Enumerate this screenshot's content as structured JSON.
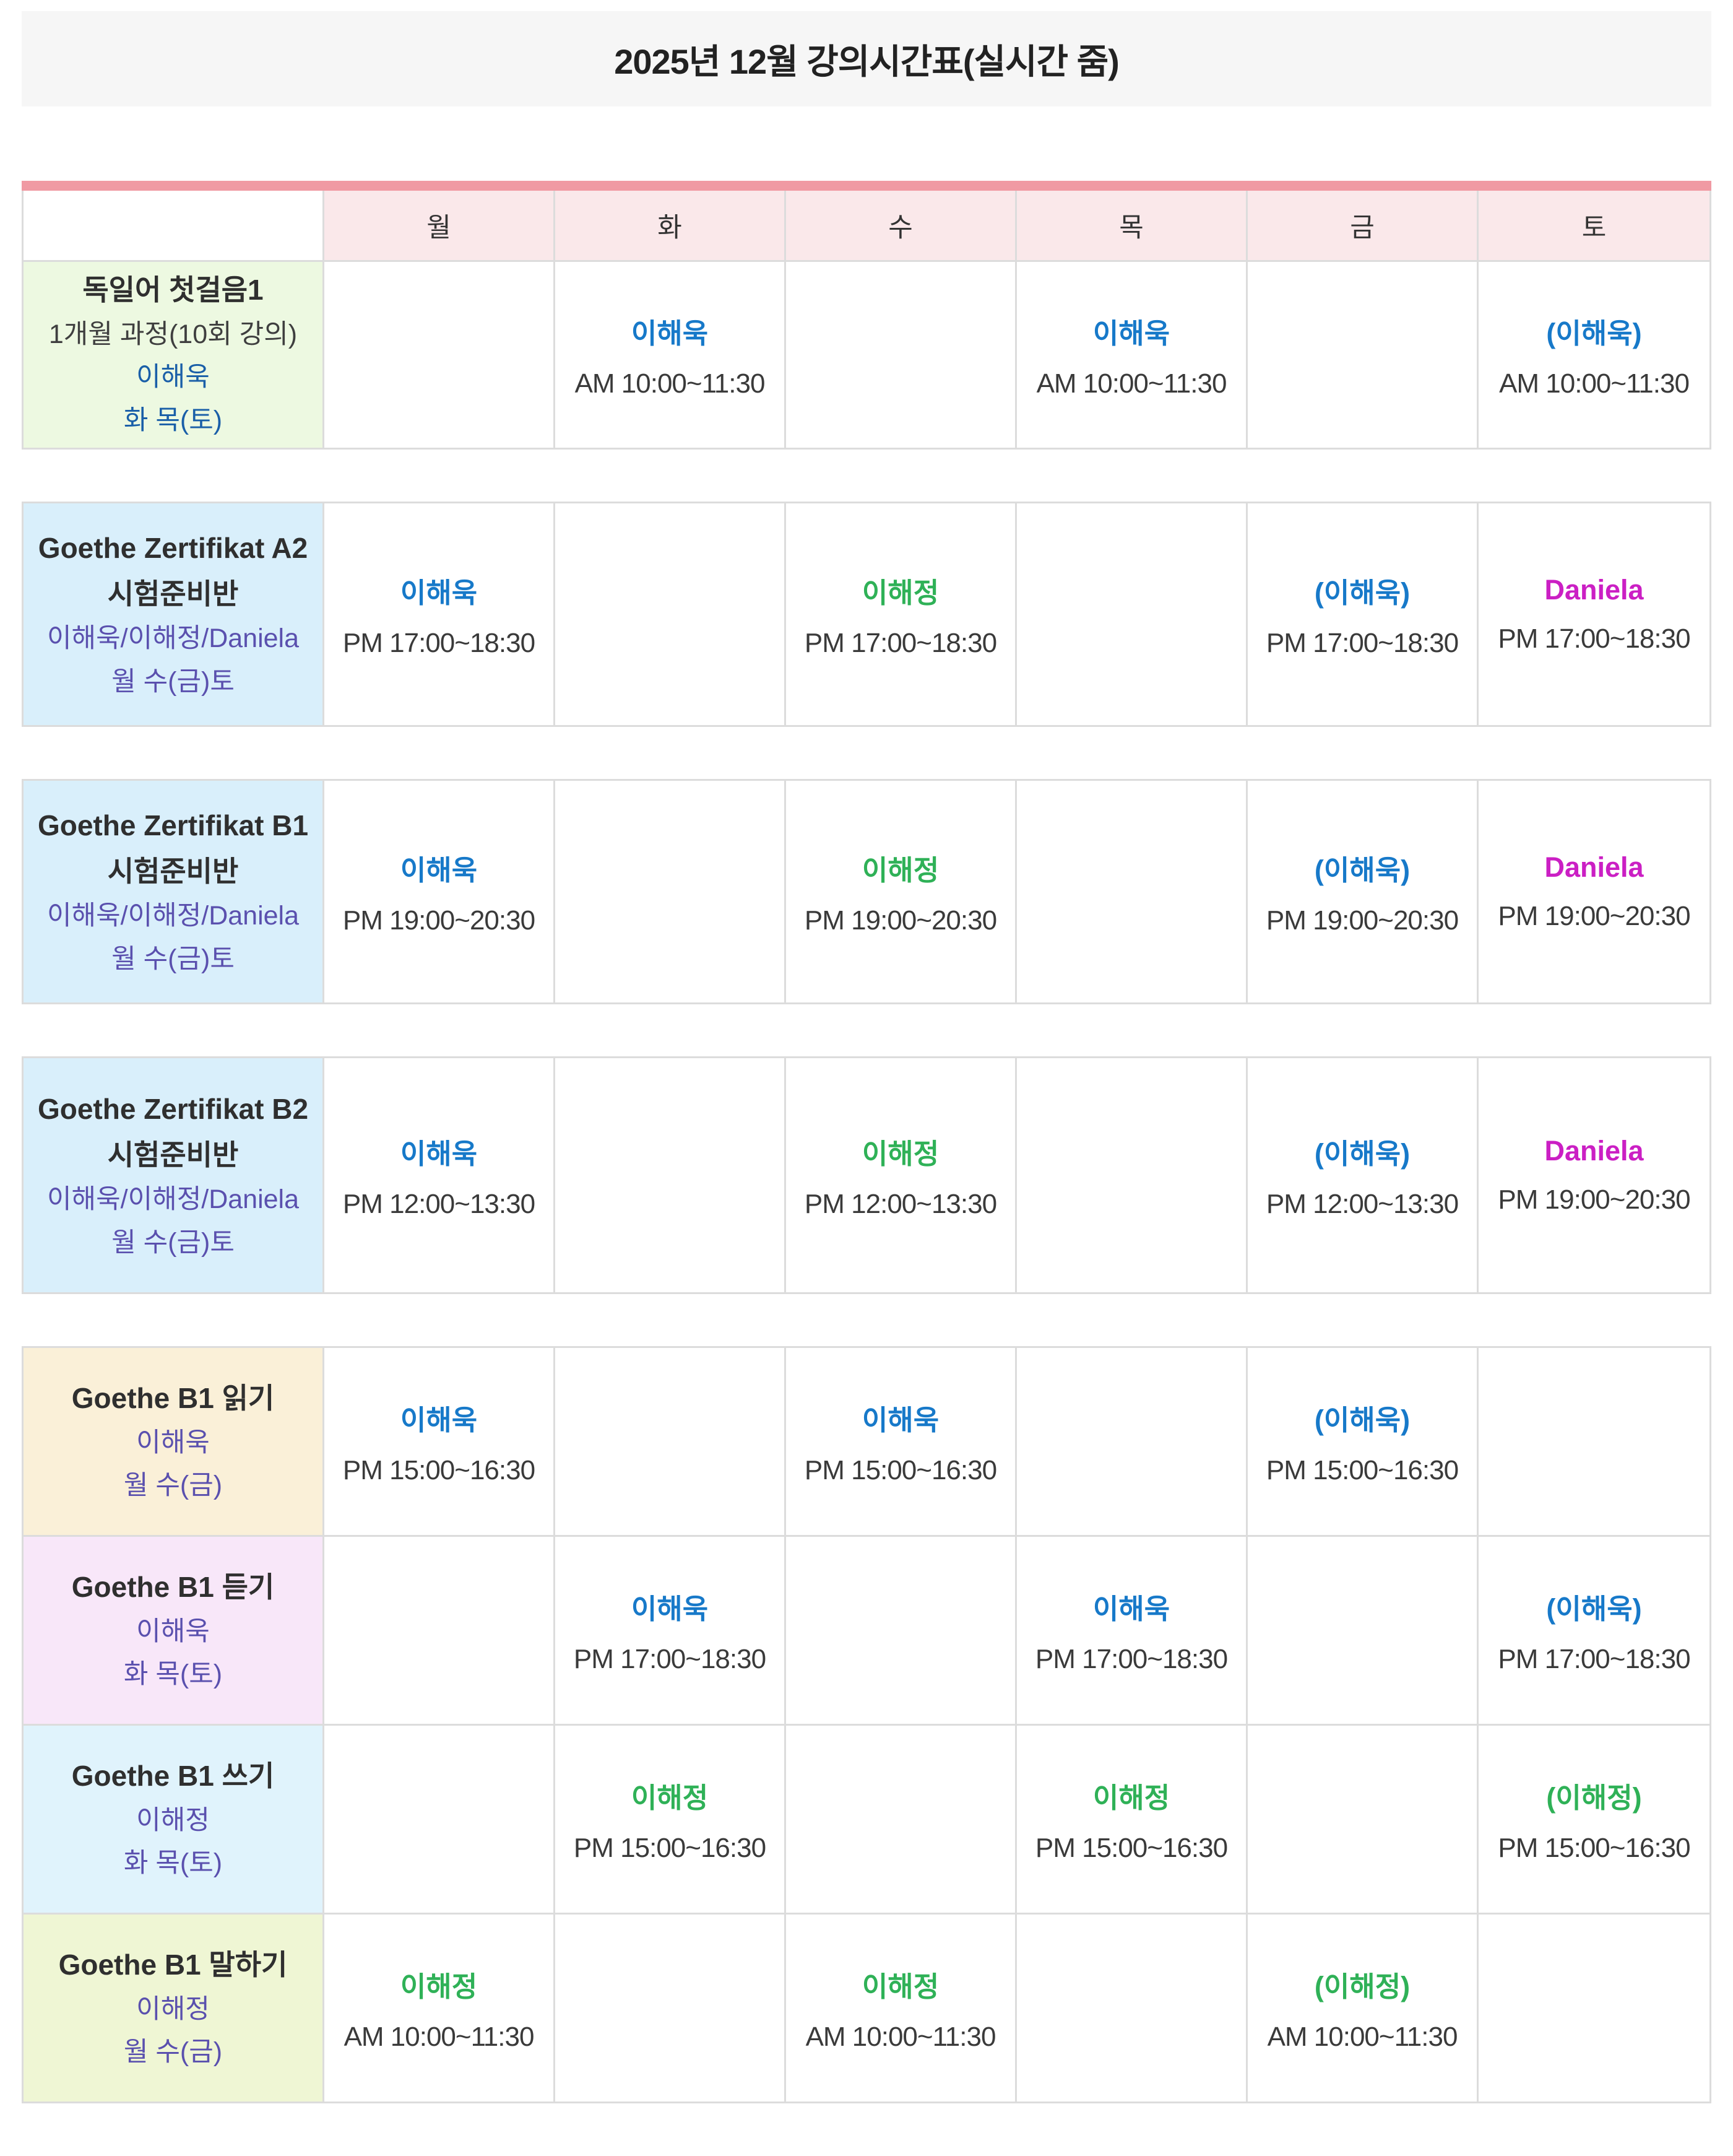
{
  "title": "2025년 12월 강의시간표(실시간 줌)",
  "day_headers": [
    "월",
    "화",
    "수",
    "목",
    "금",
    "토"
  ],
  "colors": {
    "header_accent_strip": "#f09aa3",
    "day_header_bg": "#fae8ea",
    "teacher_blue": "#1779c9",
    "teacher_green": "#2fb157",
    "teacher_magenta": "#cb1fc4",
    "label_purple": "#5a50ae",
    "label_blue": "#1a5fa8",
    "row_bg_green": "#edf9e1",
    "row_bg_sky": "#d9effb",
    "row_bg_cream": "#faf0d8",
    "row_bg_lavender": "#f8e7f9",
    "row_bg_cyan": "#e0f3fc",
    "row_bg_lime": "#eff6d4",
    "grid_line": "#dcdcdc"
  },
  "courses": [
    {
      "name": "독일어 첫걸음1",
      "sub": "1개월 과정(10회 강의)",
      "teachers": "이해욱",
      "schedule_days": "화 목(토)",
      "bg": "green",
      "label_color": "blue-dark",
      "cells": [
        null,
        {
          "teacher": "이해욱",
          "color": "blue",
          "time": "AM 10:00~11:30"
        },
        null,
        {
          "teacher": "이해욱",
          "color": "blue",
          "time": "AM 10:00~11:30"
        },
        null,
        {
          "teacher": "(이해욱)",
          "color": "blue",
          "time": "AM 10:00~11:30"
        }
      ]
    },
    {
      "name": "Goethe Zertifikat A2",
      "name2": "시험준비반",
      "teachers": "이해욱/이해정/Daniela",
      "schedule_days": "월 수(금)토",
      "bg": "sky",
      "label_color": "purple",
      "cells": [
        {
          "teacher": "이해욱",
          "color": "blue",
          "time": "PM 17:00~18:30"
        },
        null,
        {
          "teacher": "이해정",
          "color": "green",
          "time": "PM 17:00~18:30"
        },
        null,
        {
          "teacher": "(이해욱)",
          "color": "blue",
          "time": "PM 17:00~18:30"
        },
        {
          "teacher": "Daniela",
          "color": "magenta",
          "time": "PM 17:00~18:30"
        }
      ]
    },
    {
      "name": "Goethe Zertifikat B1",
      "name2": "시험준비반",
      "teachers": "이해욱/이해정/Daniela",
      "schedule_days": "월 수(금)토",
      "bg": "sky",
      "label_color": "purple",
      "cells": [
        {
          "teacher": "이해욱",
          "color": "blue",
          "time": "PM 19:00~20:30"
        },
        null,
        {
          "teacher": "이해정",
          "color": "green",
          "time": "PM 19:00~20:30"
        },
        null,
        {
          "teacher": "(이해욱)",
          "color": "blue",
          "time": "PM 19:00~20:30"
        },
        {
          "teacher": "Daniela",
          "color": "magenta",
          "time": "PM 19:00~20:30"
        }
      ]
    },
    {
      "name": "Goethe Zertifikat B2",
      "name2": "시험준비반",
      "teachers": "이해욱/이해정/Daniela",
      "schedule_days": "월 수(금)토",
      "bg": "sky",
      "label_color": "purple",
      "cells": [
        {
          "teacher": "이해욱",
          "color": "blue",
          "time": "PM 12:00~13:30"
        },
        null,
        {
          "teacher": "이해정",
          "color": "green",
          "time": "PM 12:00~13:30"
        },
        null,
        {
          "teacher": "(이해욱)",
          "color": "blue",
          "time": "PM 12:00~13:30"
        },
        {
          "teacher": "Daniela",
          "color": "magenta",
          "time": "PM 19:00~20:30"
        }
      ]
    },
    {
      "name": "Goethe B1 읽기",
      "teachers": "이해욱",
      "schedule_days": "월 수(금)",
      "bg": "cream",
      "label_color": "purple",
      "cells": [
        {
          "teacher": "이해욱",
          "color": "blue",
          "time": "PM 15:00~16:30"
        },
        null,
        {
          "teacher": "이해욱",
          "color": "blue",
          "time": "PM 15:00~16:30"
        },
        null,
        {
          "teacher": "(이해욱)",
          "color": "blue",
          "time": "PM 15:00~16:30"
        },
        null
      ]
    },
    {
      "name": "Goethe B1 듣기",
      "teachers": "이해욱",
      "schedule_days": "화 목(토)",
      "bg": "lavender",
      "label_color": "purple",
      "cells": [
        null,
        {
          "teacher": "이해욱",
          "color": "blue",
          "time": "PM 17:00~18:30"
        },
        null,
        {
          "teacher": "이해욱",
          "color": "blue",
          "time": "PM 17:00~18:30"
        },
        null,
        {
          "teacher": "(이해욱)",
          "color": "blue",
          "time": "PM 17:00~18:30"
        }
      ]
    },
    {
      "name": "Goethe B1 쓰기",
      "teachers": "이해정",
      "schedule_days": "화 목(토)",
      "bg": "cyan",
      "label_color": "purple",
      "cells": [
        null,
        {
          "teacher": "이해정",
          "color": "green",
          "time": "PM 15:00~16:30"
        },
        null,
        {
          "teacher": "이해정",
          "color": "green",
          "time": "PM 15:00~16:30"
        },
        null,
        {
          "teacher": "(이해정)",
          "color": "green",
          "time": "PM 15:00~16:30"
        }
      ]
    },
    {
      "name": "Goethe B1 말하기",
      "teachers": "이해정",
      "schedule_days": "월 수(금)",
      "bg": "lime",
      "label_color": "purple",
      "cells": [
        {
          "teacher": "이해정",
          "color": "green",
          "time": "AM 10:00~11:30"
        },
        null,
        {
          "teacher": "이해정",
          "color": "green",
          "time": "AM 10:00~11:30"
        },
        null,
        {
          "teacher": "(이해정)",
          "color": "green",
          "time": "AM 10:00~11:30"
        },
        null
      ]
    }
  ]
}
